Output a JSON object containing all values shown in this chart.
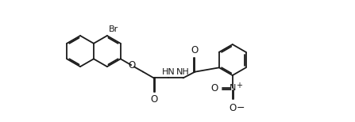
{
  "bg": "#ffffff",
  "lc": "#1a1a1a",
  "lw": 1.3,
  "figsize": [
    4.47,
    1.54
  ],
  "dpi": 100,
  "r": 0.55,
  "xlim": [
    -0.2,
    9.8
  ],
  "ylim": [
    -0.5,
    3.8
  ]
}
